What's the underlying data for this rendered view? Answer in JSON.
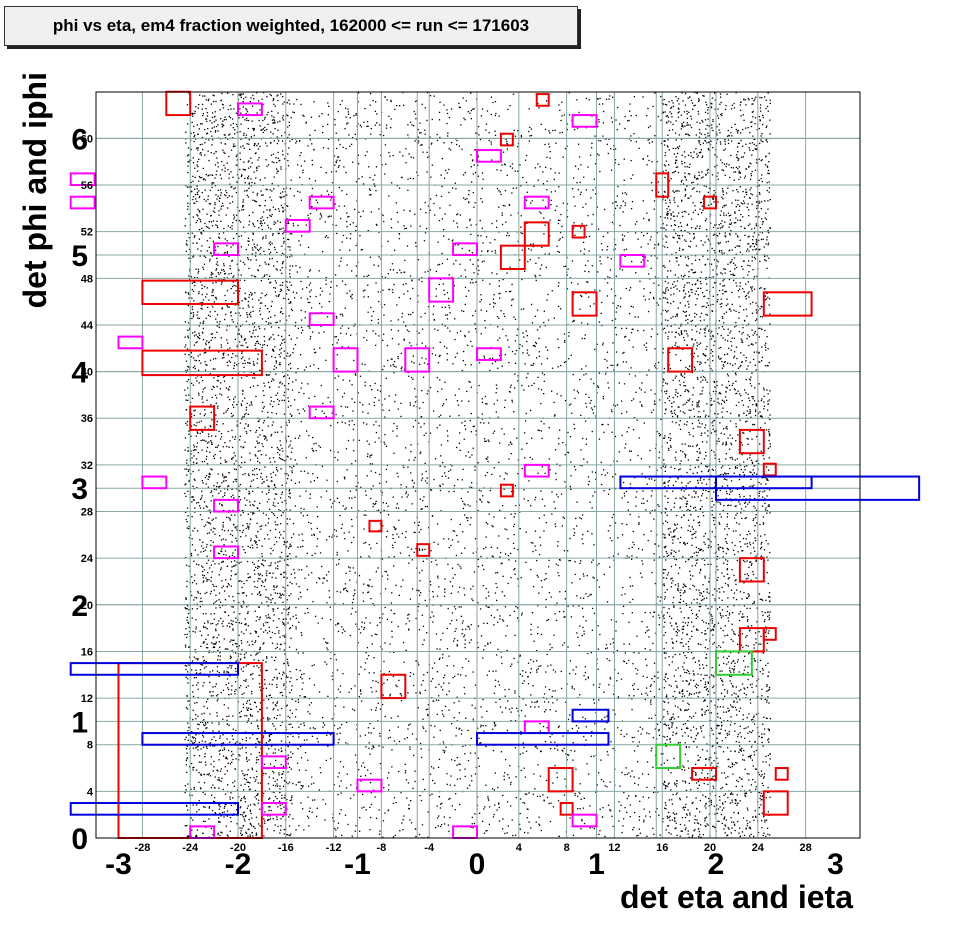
{
  "chart_data": {
    "type": "scatter",
    "title": "phi vs eta, em4 fraction weighted, 162000 <= run <= 171603",
    "xlabel": "det eta and ieta",
    "ylabel": "det phi and iphi",
    "xlim": [
      -3.4,
      3.2
    ],
    "ylim": [
      0,
      6.4
    ],
    "grid": true,
    "x_ticks_eta": [
      "-3",
      "-2",
      "-1",
      "0",
      "1",
      "2",
      "3"
    ],
    "x_ticks_ieta": [
      {
        "label": "-28",
        "eta": -2.8
      },
      {
        "label": "-24",
        "eta": -2.4
      },
      {
        "label": "-20",
        "eta": -2.0
      },
      {
        "label": "-16",
        "eta": -1.6
      },
      {
        "label": "-12",
        "eta": -1.2
      },
      {
        "label": "-8",
        "eta": -0.8
      },
      {
        "label": "-4",
        "eta": -0.4
      },
      {
        "label": "4",
        "eta": 0.35
      },
      {
        "label": "8",
        "eta": 0.75
      },
      {
        "label": "12",
        "eta": 1.15
      },
      {
        "label": "16",
        "eta": 1.55
      },
      {
        "label": "20",
        "eta": 1.95
      },
      {
        "label": "24",
        "eta": 2.35
      },
      {
        "label": "28",
        "eta": 2.75
      }
    ],
    "y_ticks_phi": [
      "0",
      "1",
      "2",
      "3",
      "4",
      "5",
      "6"
    ],
    "y_ticks_iphi": [
      "4",
      "8",
      "12",
      "16",
      "20",
      "24",
      "28",
      "32",
      "36",
      "40",
      "44",
      "48",
      "52",
      "56",
      "60"
    ],
    "dense_bands_eta": [
      [
        -2.45,
        -1.55
      ],
      [
        1.55,
        2.45
      ]
    ],
    "boxes": [
      {
        "color": "red",
        "eta": [
          -3.0,
          -1.8
        ],
        "phi": [
          0.0,
          1.5
        ]
      },
      {
        "color": "red",
        "eta": [
          -2.8,
          -1.8
        ],
        "phi": [
          3.97,
          4.18
        ]
      },
      {
        "color": "red",
        "eta": [
          -2.8,
          -2.0
        ],
        "phi": [
          4.58,
          4.78
        ]
      },
      {
        "color": "red",
        "eta": [
          -2.6,
          -2.4
        ],
        "phi": [
          6.2,
          6.4
        ]
      },
      {
        "color": "red",
        "eta": [
          -2.4,
          -2.2
        ],
        "phi": [
          3.5,
          3.7
        ]
      },
      {
        "color": "red",
        "eta": [
          -0.8,
          -0.6
        ],
        "phi": [
          1.2,
          1.4
        ]
      },
      {
        "color": "red",
        "eta": [
          -0.9,
          -0.8
        ],
        "phi": [
          2.63,
          2.72
        ]
      },
      {
        "color": "red",
        "eta": [
          -0.5,
          -0.4
        ],
        "phi": [
          2.42,
          2.52
        ]
      },
      {
        "color": "red",
        "eta": [
          0.2,
          0.4
        ],
        "phi": [
          4.88,
          5.08
        ]
      },
      {
        "color": "red",
        "eta": [
          0.4,
          0.6
        ],
        "phi": [
          5.08,
          5.28
        ]
      },
      {
        "color": "red",
        "eta": [
          0.2,
          0.3
        ],
        "phi": [
          5.94,
          6.04
        ]
      },
      {
        "color": "red",
        "eta": [
          0.5,
          0.6
        ],
        "phi": [
          6.28,
          6.38
        ]
      },
      {
        "color": "red",
        "eta": [
          0.2,
          0.3
        ],
        "phi": [
          2.93,
          3.03
        ]
      },
      {
        "color": "red",
        "eta": [
          0.8,
          1.0
        ],
        "phi": [
          4.48,
          4.68
        ]
      },
      {
        "color": "red",
        "eta": [
          0.8,
          0.9
        ],
        "phi": [
          5.15,
          5.25
        ]
      },
      {
        "color": "red",
        "eta": [
          0.6,
          0.8
        ],
        "phi": [
          0.4,
          0.6
        ]
      },
      {
        "color": "red",
        "eta": [
          0.7,
          0.8
        ],
        "phi": [
          0.2,
          0.3
        ]
      },
      {
        "color": "red",
        "eta": [
          1.5,
          1.6
        ],
        "phi": [
          5.5,
          5.7
        ]
      },
      {
        "color": "red",
        "eta": [
          1.9,
          2.0
        ],
        "phi": [
          5.4,
          5.5
        ]
      },
      {
        "color": "red",
        "eta": [
          1.6,
          1.8
        ],
        "phi": [
          4.0,
          4.2
        ]
      },
      {
        "color": "red",
        "eta": [
          2.4,
          2.8
        ],
        "phi": [
          4.48,
          4.68
        ]
      },
      {
        "color": "red",
        "eta": [
          2.2,
          2.4
        ],
        "phi": [
          3.3,
          3.5
        ]
      },
      {
        "color": "red",
        "eta": [
          2.4,
          2.5
        ],
        "phi": [
          3.11,
          3.21
        ]
      },
      {
        "color": "red",
        "eta": [
          2.2,
          2.4
        ],
        "phi": [
          2.2,
          2.4
        ]
      },
      {
        "color": "red",
        "eta": [
          2.2,
          2.4
        ],
        "phi": [
          1.6,
          1.8
        ]
      },
      {
        "color": "red",
        "eta": [
          2.4,
          2.5
        ],
        "phi": [
          1.7,
          1.8
        ]
      },
      {
        "color": "red",
        "eta": [
          1.8,
          2.0
        ],
        "phi": [
          0.5,
          0.6
        ]
      },
      {
        "color": "red",
        "eta": [
          2.5,
          2.6
        ],
        "phi": [
          0.5,
          0.6
        ]
      },
      {
        "color": "red",
        "eta": [
          2.4,
          2.6
        ],
        "phi": [
          0.2,
          0.4
        ]
      },
      {
        "color": "magenta",
        "eta": [
          -2.0,
          -1.8
        ],
        "phi": [
          6.2,
          6.3
        ]
      },
      {
        "color": "magenta",
        "eta": [
          -3.4,
          -3.2
        ],
        "phi": [
          5.6,
          5.7
        ]
      },
      {
        "color": "magenta",
        "eta": [
          -3.4,
          -3.2
        ],
        "phi": [
          5.4,
          5.5
        ]
      },
      {
        "color": "magenta",
        "eta": [
          -2.2,
          -2.0
        ],
        "phi": [
          5.0,
          5.1
        ]
      },
      {
        "color": "magenta",
        "eta": [
          -1.6,
          -1.4
        ],
        "phi": [
          5.2,
          5.3
        ]
      },
      {
        "color": "magenta",
        "eta": [
          -1.4,
          -1.2
        ],
        "phi": [
          5.4,
          5.5
        ]
      },
      {
        "color": "magenta",
        "eta": [
          -1.4,
          -1.2
        ],
        "phi": [
          4.4,
          4.5
        ]
      },
      {
        "color": "magenta",
        "eta": [
          -3.0,
          -2.8
        ],
        "phi": [
          4.2,
          4.3
        ]
      },
      {
        "color": "magenta",
        "eta": [
          -1.2,
          -1.0
        ],
        "phi": [
          4.0,
          4.2
        ]
      },
      {
        "color": "magenta",
        "eta": [
          -0.6,
          -0.4
        ],
        "phi": [
          4.0,
          4.2
        ]
      },
      {
        "color": "magenta",
        "eta": [
          -0.4,
          -0.2
        ],
        "phi": [
          4.6,
          4.8
        ]
      },
      {
        "color": "magenta",
        "eta": [
          -0.2,
          0.0
        ],
        "phi": [
          5.0,
          5.1
        ]
      },
      {
        "color": "magenta",
        "eta": [
          0.0,
          0.2
        ],
        "phi": [
          4.1,
          4.2
        ]
      },
      {
        "color": "magenta",
        "eta": [
          0.0,
          0.2
        ],
        "phi": [
          5.8,
          5.9
        ]
      },
      {
        "color": "magenta",
        "eta": [
          0.4,
          0.6
        ],
        "phi": [
          5.4,
          5.5
        ]
      },
      {
        "color": "magenta",
        "eta": [
          0.8,
          1.0
        ],
        "phi": [
          6.1,
          6.2
        ]
      },
      {
        "color": "magenta",
        "eta": [
          1.2,
          1.4
        ],
        "phi": [
          4.9,
          5.0
        ]
      },
      {
        "color": "magenta",
        "eta": [
          -1.4,
          -1.2
        ],
        "phi": [
          3.6,
          3.7
        ]
      },
      {
        "color": "magenta",
        "eta": [
          -2.8,
          -2.6
        ],
        "phi": [
          3.0,
          3.1
        ]
      },
      {
        "color": "magenta",
        "eta": [
          -2.2,
          -2.0
        ],
        "phi": [
          2.8,
          2.9
        ]
      },
      {
        "color": "magenta",
        "eta": [
          -2.2,
          -2.0
        ],
        "phi": [
          2.4,
          2.5
        ]
      },
      {
        "color": "magenta",
        "eta": [
          0.4,
          0.6
        ],
        "phi": [
          3.1,
          3.2
        ]
      },
      {
        "color": "magenta",
        "eta": [
          0.4,
          0.6
        ],
        "phi": [
          0.9,
          1.0
        ]
      },
      {
        "color": "magenta",
        "eta": [
          -1.8,
          -1.6
        ],
        "phi": [
          0.6,
          0.7
        ]
      },
      {
        "color": "magenta",
        "eta": [
          -1.8,
          -1.6
        ],
        "phi": [
          0.2,
          0.3
        ]
      },
      {
        "color": "magenta",
        "eta": [
          -2.4,
          -2.2
        ],
        "phi": [
          0.0,
          0.1
        ]
      },
      {
        "color": "magenta",
        "eta": [
          -1.0,
          -0.8
        ],
        "phi": [
          0.4,
          0.5
        ]
      },
      {
        "color": "magenta",
        "eta": [
          -0.2,
          0.0
        ],
        "phi": [
          0.0,
          0.1
        ]
      },
      {
        "color": "magenta",
        "eta": [
          0.8,
          1.0
        ],
        "phi": [
          0.1,
          0.2
        ]
      },
      {
        "color": "blue",
        "eta": [
          -3.4,
          -2.0
        ],
        "phi": [
          1.4,
          1.5
        ]
      },
      {
        "color": "blue",
        "eta": [
          -2.8,
          -1.2
        ],
        "phi": [
          0.8,
          0.9
        ]
      },
      {
        "color": "blue",
        "eta": [
          -3.4,
          -2.0
        ],
        "phi": [
          0.2,
          0.3
        ]
      },
      {
        "color": "blue",
        "eta": [
          0.0,
          1.1
        ],
        "phi": [
          0.8,
          0.9
        ]
      },
      {
        "color": "blue",
        "eta": [
          0.8,
          1.1
        ],
        "phi": [
          1.0,
          1.1
        ]
      },
      {
        "color": "blue",
        "eta": [
          1.2,
          2.8
        ],
        "phi": [
          3.0,
          3.1
        ]
      },
      {
        "color": "blue",
        "eta": [
          2.0,
          3.7
        ],
        "phi": [
          2.9,
          3.1
        ]
      },
      {
        "color": "green",
        "eta": [
          2.0,
          2.3
        ],
        "phi": [
          1.4,
          1.6
        ]
      },
      {
        "color": "green",
        "eta": [
          1.5,
          1.7
        ],
        "phi": [
          0.6,
          0.8
        ]
      }
    ]
  }
}
